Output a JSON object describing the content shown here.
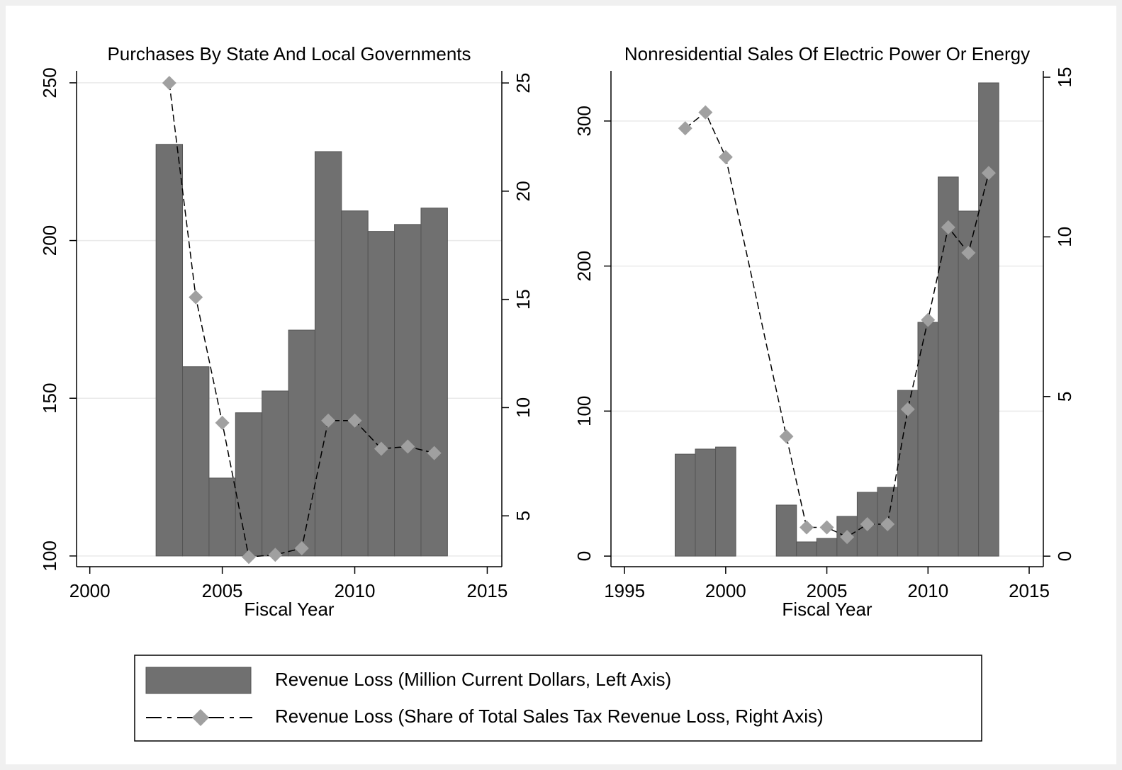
{
  "chart_data": [
    {
      "type": "bar",
      "title": "Purchases By State And Local Governments",
      "xlabel": "Fiscal Year",
      "x": [
        2003,
        2004,
        2005,
        2006,
        2007,
        2008,
        2009,
        2010,
        2011,
        2012,
        2013
      ],
      "series": [
        {
          "name": "Revenue Loss (Million Current Dollars, Left Axis)",
          "type": "bar",
          "color": "#707070",
          "values": [
            230.5,
            160,
            124.7,
            145.4,
            152.3,
            171.6,
            228.2,
            209.4,
            202.9,
            205.1,
            210.3
          ]
        },
        {
          "name": "Revenue Loss (Share of Total Sales Tax Revenue Loss, Right Axis)",
          "type": "line",
          "color": "#a0a0a0",
          "axis": "y2",
          "values": [
            25,
            15.1,
            9.3,
            3.1,
            3.2,
            3.5,
            9.4,
            9.4,
            8.1,
            8.2,
            7.9
          ]
        }
      ],
      "xlim": [
        1999.5,
        2015.55
      ],
      "xticks": [
        2000,
        2005,
        2010,
        2015
      ],
      "ylim": [
        96.6,
        253.8
      ],
      "yticks": [
        100,
        150,
        200,
        250
      ],
      "y2lim": [
        2.65,
        25.56
      ],
      "y2ticks": [
        5,
        10,
        15,
        20,
        25
      ],
      "grid": true,
      "legend": "bottom"
    },
    {
      "type": "bar",
      "title": "Nonresidential Sales Of Electric Power Or Energy",
      "xlabel": "Fiscal Year",
      "x": [
        1998,
        1999,
        2000,
        2003,
        2004,
        2005,
        2006,
        2007,
        2008,
        2009,
        2010,
        2011,
        2012,
        2013
      ],
      "series": [
        {
          "type": "bar",
          "color": "#707070",
          "values": [
            70.3,
            73.8,
            75.2,
            35.2,
            9.8,
            12.2,
            27.4,
            44,
            47.4,
            114.3,
            161.2,
            261.4,
            237.9,
            326.3
          ]
        },
        {
          "type": "line",
          "color": "#a0a0a0",
          "axis": "y2",
          "values": [
            13.4,
            13.9,
            12.5,
            3.75,
            0.9,
            0.9,
            0.6,
            1,
            1,
            4.6,
            7.4,
            10.3,
            9.5,
            12
          ]
        }
      ],
      "xlim": [
        1994.33,
        2015.7
      ],
      "xticks": [
        1995,
        2000,
        2005,
        2010,
        2015
      ],
      "ylim": [
        -7.3,
        334.6
      ],
      "yticks": [
        0,
        100,
        200,
        300
      ],
      "y2lim": [
        -0.33,
        15.2
      ],
      "y2ticks": [
        0,
        5,
        10,
        15
      ],
      "grid": true
    }
  ]
}
